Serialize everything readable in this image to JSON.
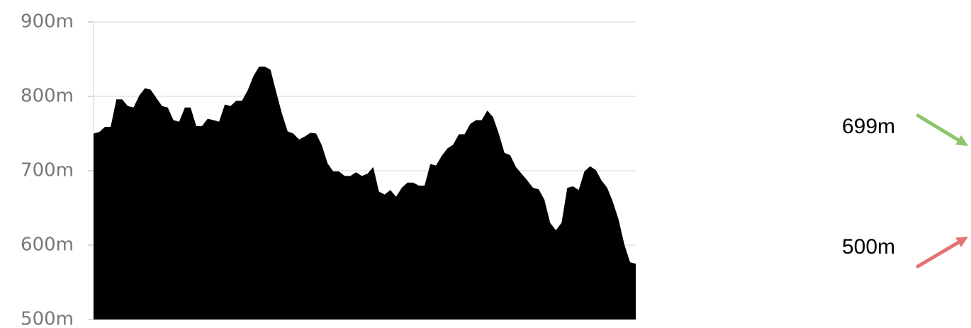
{
  "chart_data": {
    "type": "area",
    "color": "#000000",
    "grid": true,
    "ylim": [
      500,
      900
    ],
    "yticks": [
      {
        "value": 500,
        "label": "500m"
      },
      {
        "value": 600,
        "label": "600m"
      },
      {
        "value": 700,
        "label": "700m"
      },
      {
        "value": 800,
        "label": "800m"
      },
      {
        "value": 900,
        "label": "900m"
      }
    ],
    "values": [
      750,
      752,
      759,
      759,
      796,
      796,
      787,
      785,
      801,
      811,
      809,
      798,
      787,
      785,
      768,
      766,
      785,
      785,
      760,
      760,
      770,
      768,
      766,
      789,
      787,
      794,
      794,
      808,
      827,
      840,
      840,
      836,
      806,
      777,
      753,
      750,
      742,
      746,
      751,
      750,
      734,
      710,
      699,
      699,
      693,
      693,
      698,
      693,
      696,
      705,
      672,
      668,
      674,
      665,
      677,
      684,
      684,
      680,
      680,
      709,
      707,
      720,
      730,
      735,
      749,
      749,
      763,
      768,
      768,
      781,
      772,
      750,
      724,
      721,
      705,
      696,
      687,
      677,
      675,
      661,
      630,
      620,
      630,
      677,
      679,
      674,
      699,
      706,
      701,
      687,
      677,
      658,
      634,
      601,
      577,
      575
    ],
    "annotations": [
      {
        "text": "699m",
        "color": "#8cc56b"
      },
      {
        "text": "500m",
        "color": "#e57373"
      }
    ]
  }
}
